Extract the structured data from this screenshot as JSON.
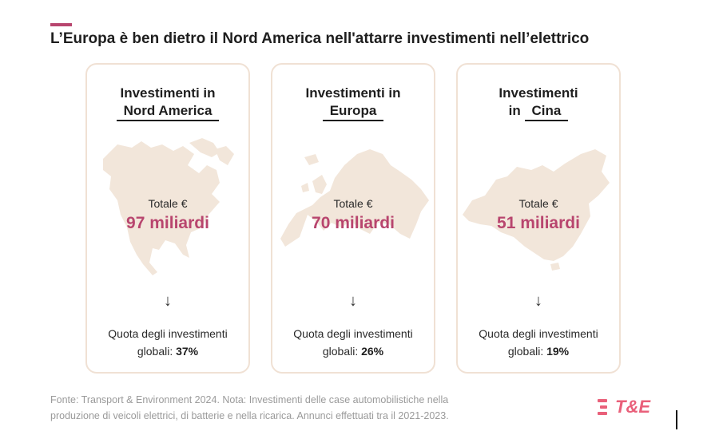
{
  "headline": "L’Europa è ben dietro il Nord America nell'attarre investimenti nell’elettrico",
  "cards": [
    {
      "title_prefix": "Investimenti in",
      "region": "Nord America",
      "total_label": "Totale €",
      "total_value": "97 miliardi",
      "arrow": "↓",
      "share_line1": "Quota degli investimenti",
      "share_line2": "globali:",
      "share_value": "37%",
      "map_icon": "north-america-map"
    },
    {
      "title_prefix": "Investimenti in",
      "region": "Europa",
      "total_label": "Totale €",
      "total_value": "70 miliardi",
      "arrow": "↓",
      "share_line1": "Quota degli investimenti",
      "share_line2": "globali:",
      "share_value": "26%",
      "map_icon": "europe-map"
    },
    {
      "title_prefix": "Investimenti",
      "title_mid": "in",
      "region": "Cina",
      "total_label": "Totale €",
      "total_value": "51 miliardi",
      "arrow": "↓",
      "share_line1": "Quota degli investimenti",
      "share_line2": "globali:",
      "share_value": "19%",
      "map_icon": "china-map"
    }
  ],
  "source_line1": "Fonte: Transport & Environment 2024. Nota: Investimenti delle case automobilistiche nella",
  "source_line2": "produzione di veicoli elettrici, di batterie e nella ricarica. Annunci effettuati tra il 2021-2023.",
  "logo_text": "T&E",
  "colors": {
    "accent": "#b8456e",
    "map_fill": "#f2e6da",
    "card_border": "#f0e1d4",
    "logo": "#e9607a"
  }
}
